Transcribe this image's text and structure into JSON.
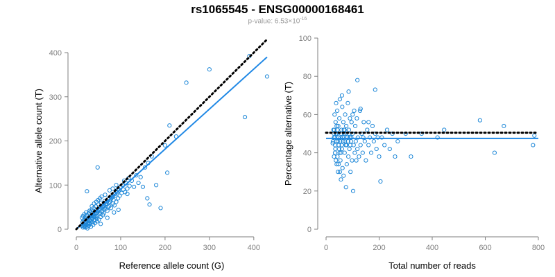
{
  "title": "rs1065545 - ENSG00000168461",
  "subtitle": {
    "prefix": "p-value: 6.53×10",
    "exponent": "-16"
  },
  "colors": {
    "points": "#1f88d8",
    "fit": "#1f88e5",
    "reference": "#000000",
    "axis": "#7f7f7f"
  },
  "chart_data": [
    {
      "type": "scatter",
      "xlabel": "Reference allele count (G)",
      "ylabel": "Alternative allele count (T)",
      "xlim": [
        0,
        430
      ],
      "ylim": [
        0,
        400
      ],
      "xticks": [
        0,
        100,
        200,
        300,
        400
      ],
      "yticks": [
        0,
        100,
        200,
        300,
        400
      ],
      "fit_line": {
        "x": [
          0,
          430
        ],
        "y": [
          0,
          390
        ],
        "style": "solid"
      },
      "reference_line": {
        "x": [
          0,
          430
        ],
        "y": [
          0,
          430
        ],
        "style": "dotted"
      },
      "points": [
        [
          12,
          8
        ],
        [
          14,
          16
        ],
        [
          15,
          4
        ],
        [
          16,
          20
        ],
        [
          17,
          12
        ],
        [
          18,
          6
        ],
        [
          19,
          24
        ],
        [
          20,
          14
        ],
        [
          21,
          28
        ],
        [
          22,
          10
        ],
        [
          23,
          18
        ],
        [
          24,
          32
        ],
        [
          25,
          6
        ],
        [
          26,
          22
        ],
        [
          27,
          15
        ],
        [
          28,
          36
        ],
        [
          29,
          20
        ],
        [
          30,
          12
        ],
        [
          31,
          26
        ],
        [
          32,
          40
        ],
        [
          33,
          18
        ],
        [
          34,
          30
        ],
        [
          35,
          44
        ],
        [
          36,
          24
        ],
        [
          37,
          16
        ],
        [
          38,
          34
        ],
        [
          39,
          48
        ],
        [
          40,
          28
        ],
        [
          41,
          20
        ],
        [
          42,
          38
        ],
        [
          44,
          52
        ],
        [
          45,
          30
        ],
        [
          46,
          24
        ],
        [
          48,
          42
        ],
        [
          50,
          56
        ],
        [
          52,
          34
        ],
        [
          54,
          46
        ],
        [
          55,
          28
        ],
        [
          56,
          60
        ],
        [
          58,
          40
        ],
        [
          60,
          50
        ],
        [
          62,
          36
        ],
        [
          64,
          64
        ],
        [
          66,
          46
        ],
        [
          68,
          56
        ],
        [
          70,
          42
        ],
        [
          72,
          68
        ],
        [
          74,
          52
        ],
        [
          76,
          62
        ],
        [
          78,
          48
        ],
        [
          80,
          72
        ],
        [
          82,
          58
        ],
        [
          84,
          66
        ],
        [
          86,
          54
        ],
        [
          88,
          76
        ],
        [
          90,
          62
        ],
        [
          92,
          84
        ],
        [
          94,
          70
        ],
        [
          96,
          88
        ],
        [
          98,
          76
        ],
        [
          100,
          96
        ],
        [
          102,
          82
        ],
        [
          104,
          100
        ],
        [
          106,
          90
        ],
        [
          108,
          110
        ],
        [
          110,
          84
        ],
        [
          112,
          104
        ],
        [
          115,
          92
        ],
        [
          118,
          116
        ],
        [
          120,
          98
        ],
        [
          13,
          26
        ],
        [
          15,
          30
        ],
        [
          18,
          34
        ],
        [
          20,
          4
        ],
        [
          22,
          38
        ],
        [
          25,
          2
        ],
        [
          28,
          8
        ],
        [
          30,
          42
        ],
        [
          33,
          6
        ],
        [
          35,
          52
        ],
        [
          38,
          10
        ],
        [
          40,
          58
        ],
        [
          42,
          14
        ],
        [
          45,
          62
        ],
        [
          47,
          18
        ],
        [
          49,
          66
        ],
        [
          51,
          22
        ],
        [
          53,
          70
        ],
        [
          55,
          12
        ],
        [
          57,
          74
        ],
        [
          24,
          86
        ],
        [
          48,
          140
        ],
        [
          60,
          32
        ],
        [
          70,
          26
        ],
        [
          85,
          38
        ],
        [
          95,
          44
        ],
        [
          65,
          78
        ],
        [
          75,
          88
        ],
        [
          82,
          92
        ],
        [
          90,
          100
        ],
        [
          115,
          80
        ],
        [
          125,
          110
        ],
        [
          130,
          96
        ],
        [
          135,
          122
        ],
        [
          140,
          105
        ],
        [
          145,
          118
        ],
        [
          150,
          96
        ],
        [
          155,
          140
        ],
        [
          160,
          70
        ],
        [
          162,
          150
        ],
        [
          165,
          56
        ],
        [
          170,
          165
        ],
        [
          180,
          100
        ],
        [
          190,
          48
        ],
        [
          200,
          190
        ],
        [
          205,
          128
        ],
        [
          210,
          235
        ],
        [
          225,
          210
        ],
        [
          248,
          332
        ],
        [
          300,
          362
        ],
        [
          380,
          254
        ],
        [
          390,
          392
        ],
        [
          430,
          346
        ],
        [
          16,
          10
        ],
        [
          19,
          8
        ],
        [
          21,
          16
        ],
        [
          23,
          24
        ],
        [
          26,
          12
        ],
        [
          29,
          14
        ],
        [
          31,
          20
        ],
        [
          34,
          22
        ],
        [
          36,
          26
        ],
        [
          39,
          30
        ],
        [
          41,
          34
        ],
        [
          43,
          28
        ],
        [
          46,
          36
        ],
        [
          49,
          40
        ],
        [
          51,
          44
        ],
        [
          53,
          38
        ],
        [
          57,
          48
        ],
        [
          59,
          52
        ],
        [
          61,
          46
        ],
        [
          63,
          54
        ],
        [
          67,
          58
        ],
        [
          69,
          62
        ],
        [
          71,
          50
        ],
        [
          73,
          60
        ],
        [
          77,
          66
        ],
        [
          79,
          70
        ],
        [
          83,
          74
        ],
        [
          87,
          80
        ],
        [
          89,
          86
        ],
        [
          93,
          90
        ]
      ]
    },
    {
      "type": "scatter",
      "xlabel": "Total number of reads",
      "ylabel": "Percentage alternative (T)",
      "xlim": [
        0,
        800
      ],
      "ylim": [
        0,
        100
      ],
      "xticks": [
        0,
        200,
        400,
        600,
        800
      ],
      "yticks": [
        0,
        20,
        40,
        60,
        80,
        100
      ],
      "fit_line": {
        "x": [
          0,
          800
        ],
        "y": [
          47.5,
          47.5
        ],
        "style": "solid"
      },
      "reference_line": {
        "x": [
          0,
          800
        ],
        "y": [
          50.5,
          50.5
        ],
        "style": "dotted"
      },
      "points": [
        [
          25,
          45
        ],
        [
          28,
          52
        ],
        [
          30,
          38
        ],
        [
          32,
          60
        ],
        [
          33,
          48
        ],
        [
          35,
          42
        ],
        [
          36,
          56
        ],
        [
          38,
          66
        ],
        [
          40,
          34
        ],
        [
          41,
          50
        ],
        [
          42,
          62
        ],
        [
          44,
          46
        ],
        [
          45,
          30
        ],
        [
          46,
          54
        ],
        [
          48,
          44
        ],
        [
          50,
          58
        ],
        [
          51,
          40
        ],
        [
          52,
          68
        ],
        [
          54,
          36
        ],
        [
          55,
          48
        ],
        [
          56,
          26
        ],
        [
          58,
          52
        ],
        [
          60,
          42
        ],
        [
          61,
          64
        ],
        [
          62,
          32
        ],
        [
          64,
          46
        ],
        [
          65,
          56
        ],
        [
          66,
          28
        ],
        [
          68,
          50
        ],
        [
          70,
          40
        ],
        [
          72,
          60
        ],
        [
          74,
          44
        ],
        [
          75,
          22
        ],
        [
          76,
          54
        ],
        [
          78,
          34
        ],
        [
          80,
          48
        ],
        [
          82,
          66
        ],
        [
          84,
          38
        ],
        [
          86,
          52
        ],
        [
          88,
          42
        ],
        [
          90,
          58
        ],
        [
          92,
          30
        ],
        [
          94,
          46
        ],
        [
          96,
          56
        ],
        [
          98,
          36
        ],
        [
          100,
          50
        ],
        [
          102,
          20
        ],
        [
          104,
          44
        ],
        [
          106,
          62
        ],
        [
          108,
          40
        ],
        [
          110,
          54
        ],
        [
          112,
          46
        ],
        [
          114,
          36
        ],
        [
          116,
          58
        ],
        [
          118,
          42
        ],
        [
          120,
          48
        ],
        [
          124,
          38
        ],
        [
          128,
          62
        ],
        [
          130,
          44
        ],
        [
          134,
          50
        ],
        [
          138,
          40
        ],
        [
          142,
          56
        ],
        [
          146,
          46
        ],
        [
          150,
          36
        ],
        [
          155,
          52
        ],
        [
          160,
          44
        ],
        [
          165,
          48
        ],
        [
          170,
          40
        ],
        [
          175,
          54
        ],
        [
          180,
          46
        ],
        [
          185,
          50
        ],
        [
          190,
          42
        ],
        [
          195,
          48
        ],
        [
          200,
          38
        ],
        [
          205,
          25
        ],
        [
          210,
          48
        ],
        [
          220,
          44
        ],
        [
          230,
          52
        ],
        [
          240,
          42
        ],
        [
          250,
          50
        ],
        [
          260,
          38
        ],
        [
          270,
          46
        ],
        [
          300,
          50
        ],
        [
          320,
          38
        ],
        [
          360,
          50
        ],
        [
          420,
          48
        ],
        [
          445,
          52
        ],
        [
          580,
          57
        ],
        [
          635,
          40
        ],
        [
          670,
          54
        ],
        [
          780,
          44
        ],
        [
          785,
          49
        ],
        [
          118,
          78
        ],
        [
          185,
          73
        ],
        [
          130,
          63
        ],
        [
          90,
          48
        ],
        [
          60,
          70
        ],
        [
          70,
          52
        ],
        [
          85,
          72
        ],
        [
          100,
          60
        ],
        [
          140,
          48
        ],
        [
          160,
          56
        ],
        [
          30,
          48
        ],
        [
          34,
          44
        ],
        [
          37,
          50
        ],
        [
          39,
          46
        ],
        [
          43,
          52
        ],
        [
          47,
          48
        ],
        [
          49,
          42
        ],
        [
          53,
          46
        ],
        [
          57,
          50
        ],
        [
          59,
          44
        ],
        [
          63,
          48
        ],
        [
          67,
          52
        ],
        [
          71,
          46
        ],
        [
          73,
          50
        ],
        [
          77,
          44
        ],
        [
          79,
          48
        ],
        [
          83,
          46
        ],
        [
          87,
          50
        ],
        [
          91,
          44
        ],
        [
          95,
          48
        ],
        [
          26,
          46
        ],
        [
          29,
          50
        ],
        [
          31,
          52
        ],
        [
          34,
          40
        ],
        [
          37,
          36
        ],
        [
          40,
          54
        ],
        [
          43,
          38
        ],
        [
          47,
          34
        ],
        [
          52,
          30
        ],
        [
          56,
          40
        ]
      ]
    }
  ]
}
